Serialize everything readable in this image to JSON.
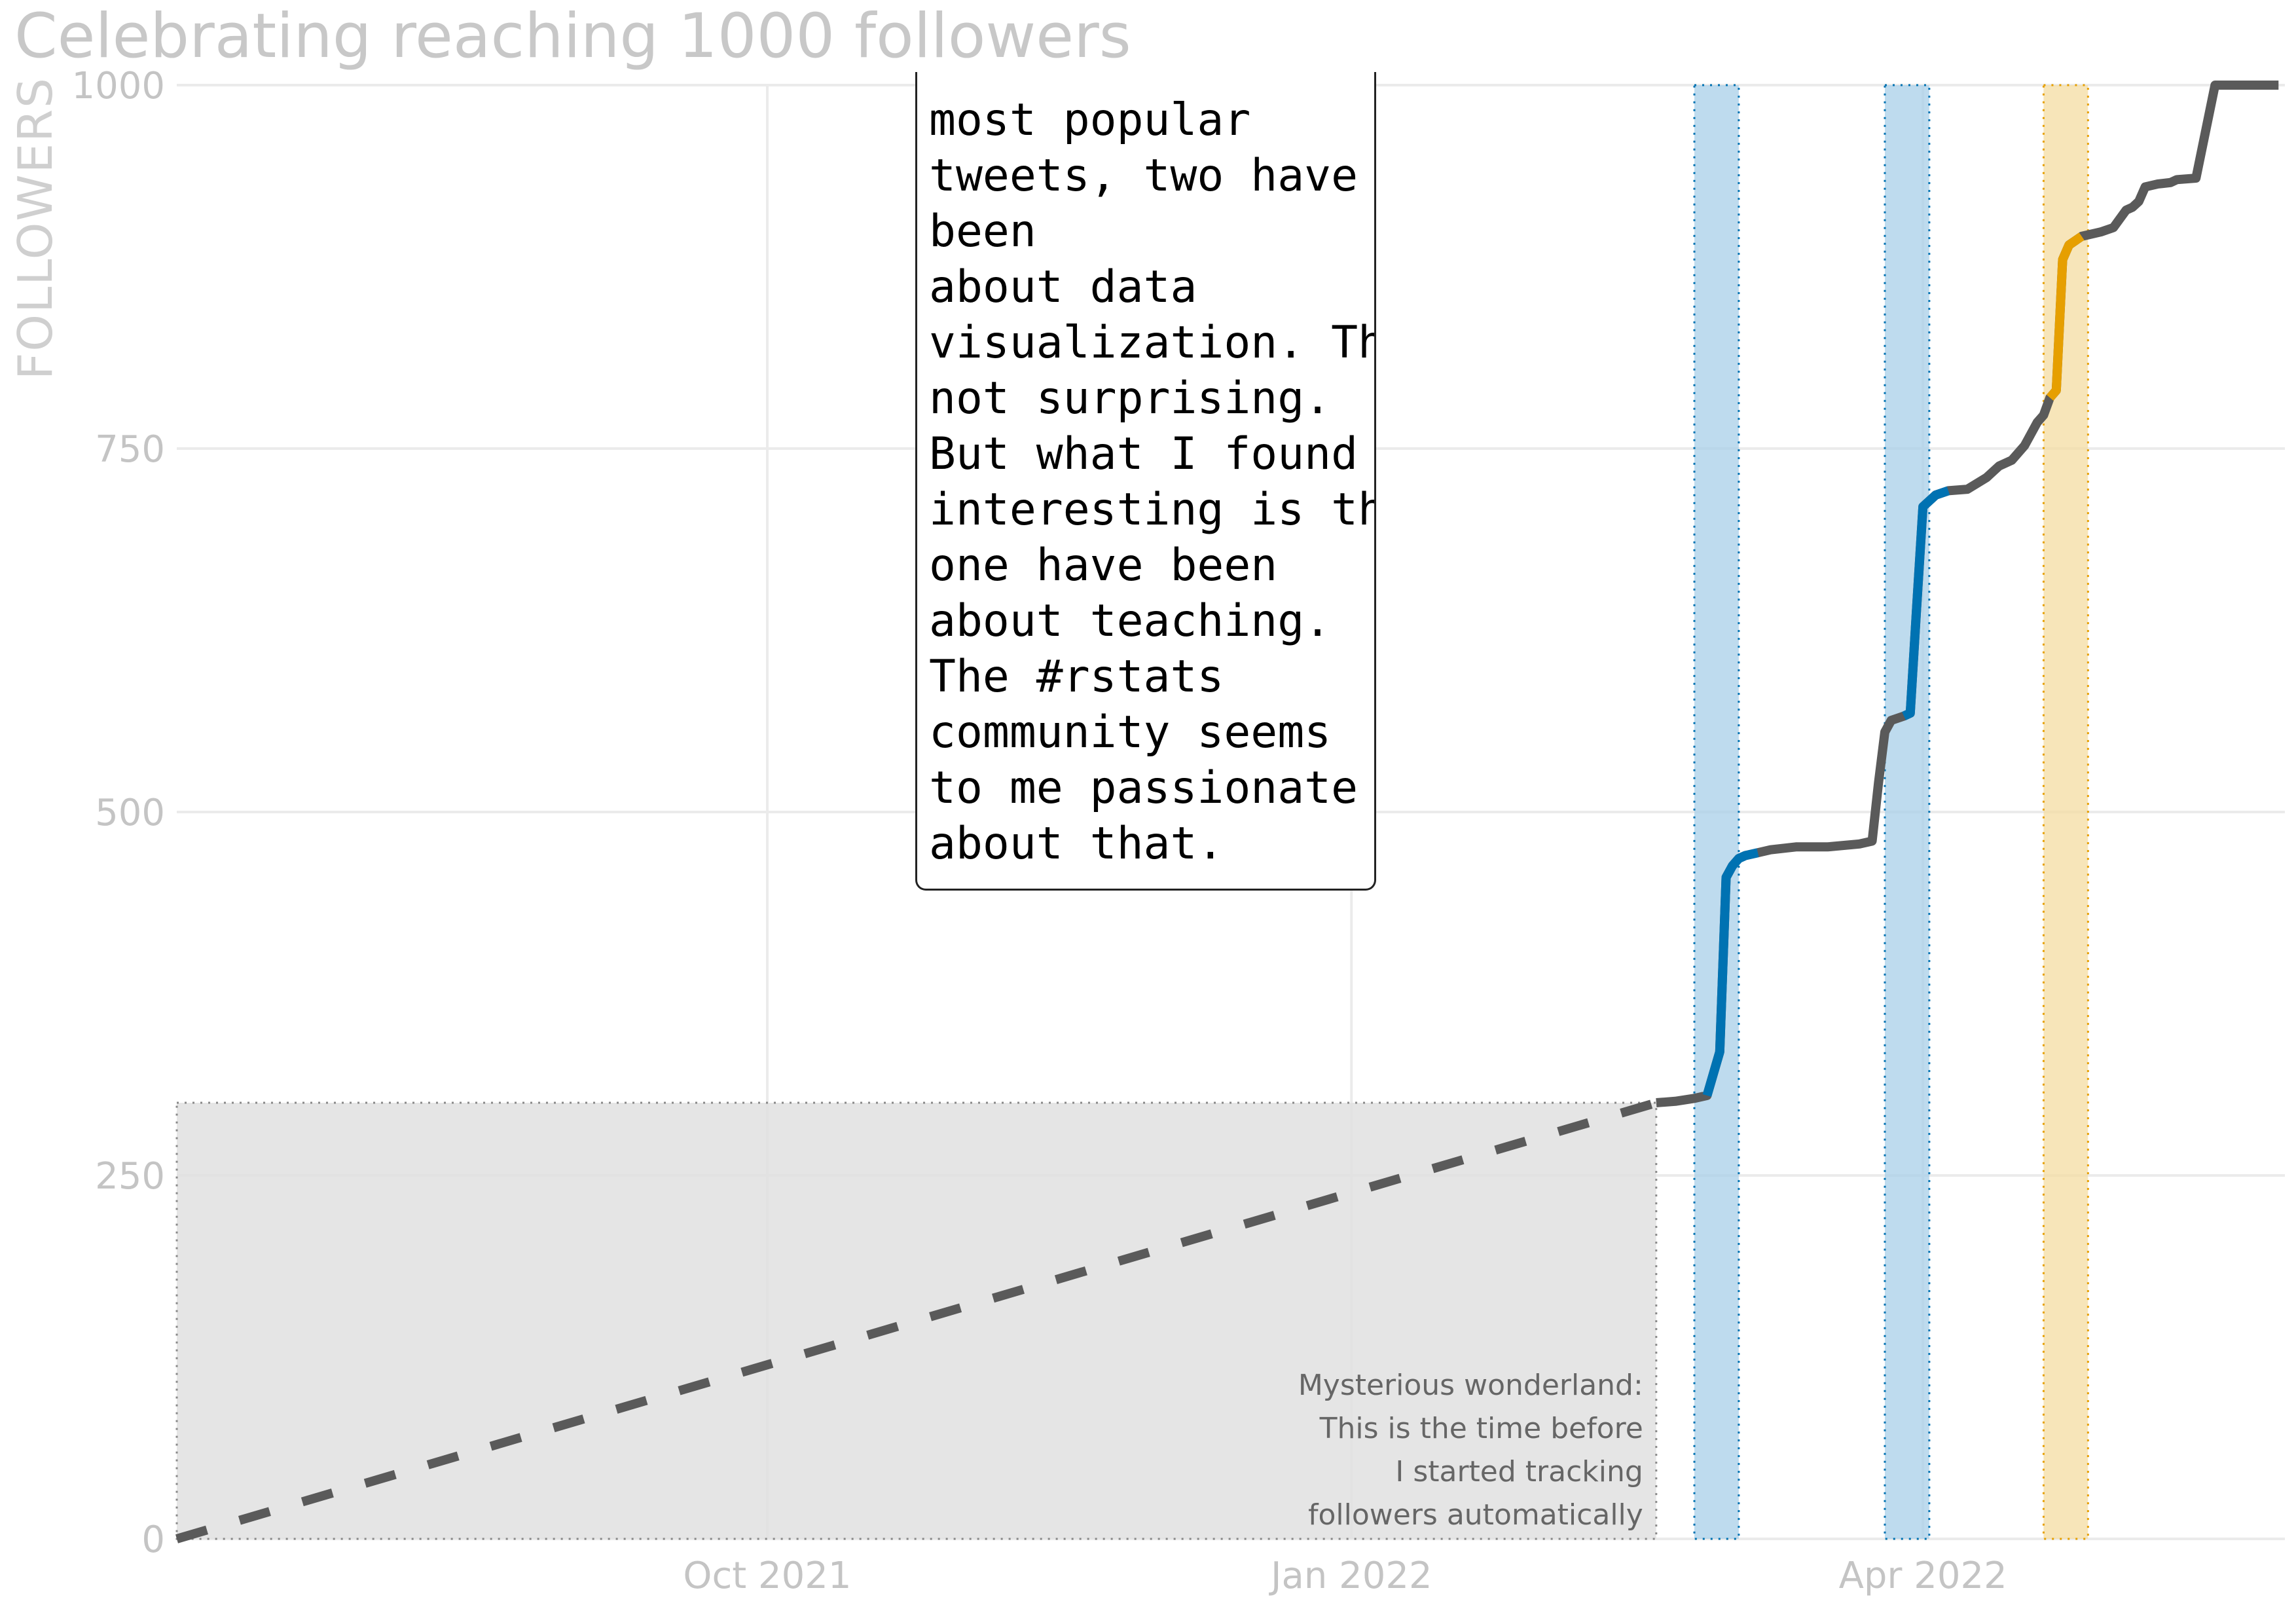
{
  "chart_data": {
    "type": "line",
    "title": "Celebrating reaching 1000 followers",
    "ylabel": "FOLLOWERS",
    "xlabel": "",
    "ylim": [
      0,
      1000
    ],
    "y_ticks": [
      0,
      250,
      500,
      750,
      1000
    ],
    "y_tick_labels": [
      "0",
      "250",
      "500",
      "750",
      "1000"
    ],
    "xlim": [
      "2021-06-30",
      "2022-05-28"
    ],
    "x_ticks": [
      "2021-10-01",
      "2022-01-01",
      "2022-04-01"
    ],
    "x_tick_labels": [
      "Oct 2021",
      "Jan 2022",
      "Apr 2022"
    ],
    "grid": true,
    "legend": "none",
    "colors": {
      "line": "#5a5a5a",
      "highlight_blue": "#0072b2",
      "highlight_orange": "#e69f00",
      "band_blue": "#a8cfe8",
      "band_orange": "#f4dca2",
      "shaded_region": "#e0e0e0"
    },
    "estimated_series": {
      "style": "dashed",
      "x": [
        "2021-06-30",
        "2022-02-18"
      ],
      "values": [
        0,
        300
      ]
    },
    "tracked_series": {
      "style": "solid",
      "x": [
        "2022-02-18",
        "2022-02-21",
        "2022-02-24",
        "2022-02-26",
        "2022-02-27",
        "2022-02-28",
        "2022-03-01",
        "2022-03-02",
        "2022-03-03",
        "2022-03-04",
        "2022-03-06",
        "2022-03-08",
        "2022-03-12",
        "2022-03-17",
        "2022-03-22",
        "2022-03-24",
        "2022-03-25",
        "2022-03-26",
        "2022-03-27",
        "2022-03-29",
        "2022-03-30",
        "2022-03-31",
        "2022-04-01",
        "2022-04-03",
        "2022-04-05",
        "2022-04-08",
        "2022-04-11",
        "2022-04-12",
        "2022-04-13",
        "2022-04-15",
        "2022-04-17",
        "2022-04-18",
        "2022-04-19",
        "2022-04-20",
        "2022-04-21",
        "2022-04-22",
        "2022-04-23",
        "2022-04-24",
        "2022-04-26",
        "2022-04-28",
        "2022-04-29",
        "2022-05-01",
        "2022-05-03",
        "2022-05-04",
        "2022-05-05",
        "2022-05-06",
        "2022-05-08",
        "2022-05-10",
        "2022-05-11",
        "2022-05-14",
        "2022-05-17",
        "2022-05-18",
        "2022-05-22",
        "2022-05-26",
        "2022-05-27"
      ],
      "values": [
        300,
        301,
        303,
        305,
        320,
        335,
        455,
        463,
        468,
        470,
        472,
        474,
        476,
        476,
        478,
        480,
        520,
        555,
        563,
        566,
        568,
        640,
        710,
        718,
        721,
        722,
        730,
        734,
        738,
        742,
        752,
        760,
        768,
        773,
        785,
        790,
        880,
        890,
        896,
        898,
        899,
        902,
        914,
        916,
        920,
        930,
        932,
        933,
        935,
        936,
        1000,
        1000,
        1000,
        1000,
        1000
      ]
    },
    "highlight_bands": [
      {
        "start": "2022-02-24",
        "end": "2022-03-03",
        "color": "blue"
      },
      {
        "start": "2022-03-26",
        "end": "2022-04-02",
        "color": "blue"
      },
      {
        "start": "2022-04-20",
        "end": "2022-04-27",
        "color": "orange"
      }
    ],
    "highlighted_segments": [
      {
        "start": "2022-02-26",
        "end": "2022-03-07",
        "color": "blue"
      },
      {
        "start": "2022-03-29",
        "end": "2022-04-05",
        "color": "blue"
      },
      {
        "start": "2022-04-21",
        "end": "2022-04-27",
        "color": "orange"
      }
    ],
    "shaded_region": {
      "start": "2021-06-30",
      "end": "2022-02-18",
      "top": 300
    },
    "annotations": {
      "region_note": [
        "Mysterious wonderland:",
        "This is the time before",
        "I started tracking",
        "followers automatically"
      ],
      "callout": "most popular\ntweets, two have\nbeen\nabout data\nvisualization. That's\nnot surprising.\nBut what I found\ninteresting is that\none have been\nabout teaching.\nThe #rstats\ncommunity seems\nto me passionate\nabout that."
    }
  }
}
